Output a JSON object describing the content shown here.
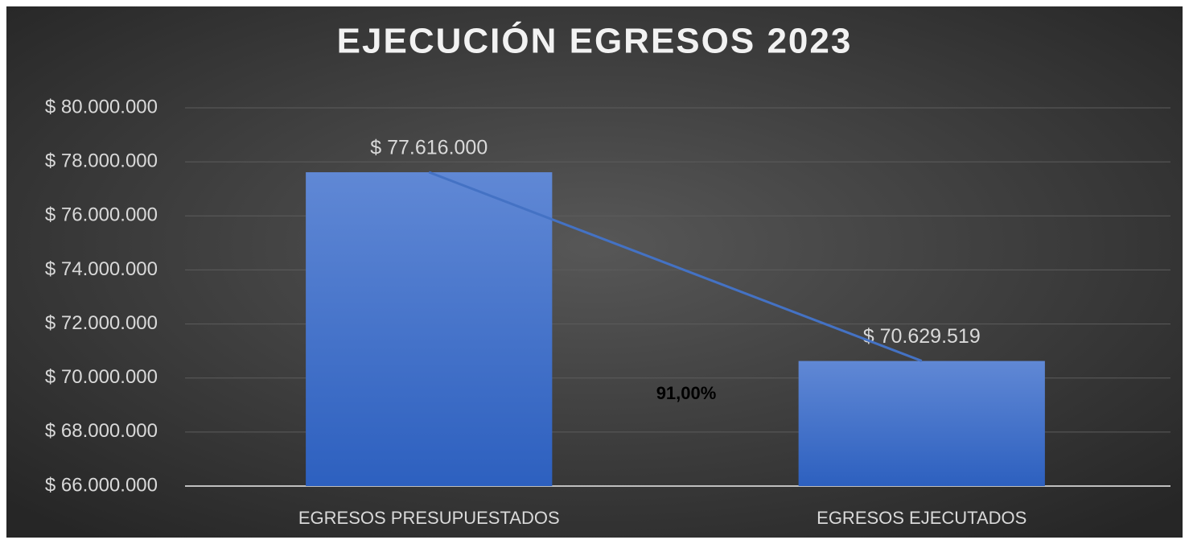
{
  "chart_data": {
    "type": "bar",
    "title": "EJECUCIÓN EGRESOS 2023",
    "categories": [
      "EGRESOS PRESUPUESTADOS",
      "EGRESOS EJECUTADOS"
    ],
    "values": [
      77616000,
      70629519
    ],
    "value_labels": [
      "$ 77.616.000",
      "$ 70.629.519"
    ],
    "color": "#4472c4",
    "trend_line": true,
    "line_color": "#4472c4",
    "annotation": "91,00%",
    "ylim": [
      66000000,
      80000000
    ],
    "yticks": [
      {
        "value": 66000000,
        "label": "$ 66.000.000"
      },
      {
        "value": 68000000,
        "label": "$ 68.000.000"
      },
      {
        "value": 70000000,
        "label": "$ 70.000.000"
      },
      {
        "value": 72000000,
        "label": "$ 72.000.000"
      },
      {
        "value": 74000000,
        "label": "$ 74.000.000"
      },
      {
        "value": 76000000,
        "label": "$ 76.000.000"
      },
      {
        "value": 78000000,
        "label": "$ 78.000.000"
      },
      {
        "value": 80000000,
        "label": "$ 80.000.000"
      }
    ],
    "grid": true
  }
}
